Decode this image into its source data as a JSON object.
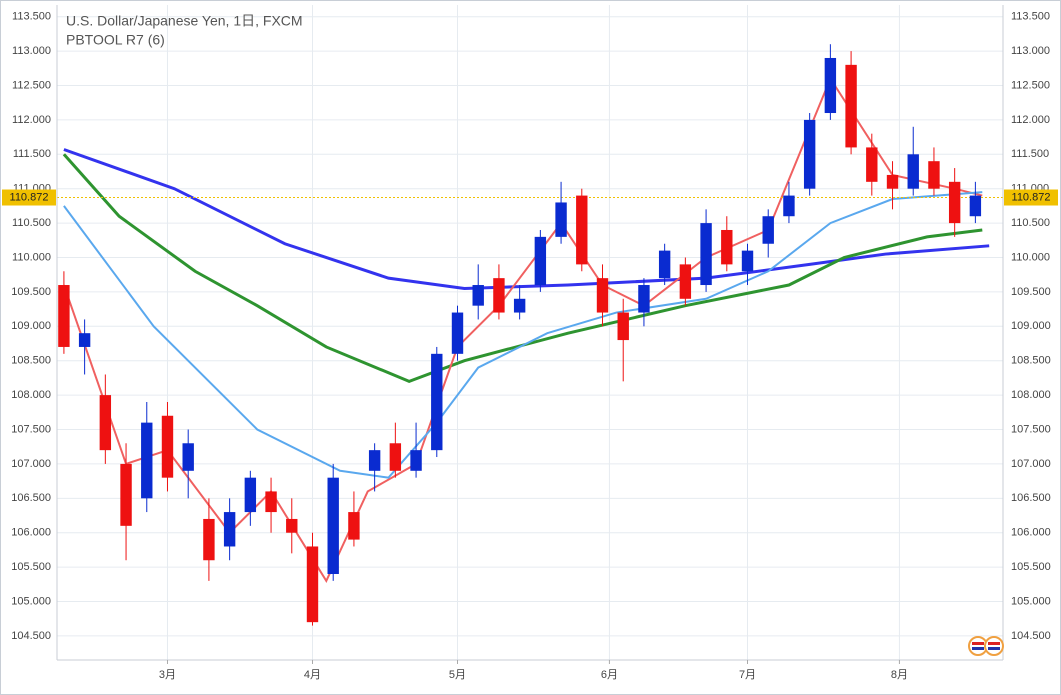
{
  "chart_data": {
    "type": "candlestick",
    "title": "U.S. Dollar/Japanese Yen, 1日, FXCM",
    "subtitle": "PBTOOL R7 (6)",
    "x": [
      0,
      3,
      6,
      9,
      12,
      15,
      18,
      21,
      24,
      27,
      30,
      33,
      36,
      39,
      42,
      45,
      48,
      51,
      54,
      57,
      60,
      63,
      66,
      69,
      72,
      75,
      78,
      81,
      84,
      87,
      90,
      93,
      96,
      99,
      102,
      105,
      108,
      111,
      114,
      117,
      120,
      123,
      126,
      129,
      132
    ],
    "candles": [
      [
        109.6,
        109.8,
        108.6,
        108.7
      ],
      [
        108.7,
        109.1,
        108.3,
        108.9
      ],
      [
        108.0,
        108.3,
        107.0,
        107.2
      ],
      [
        107.0,
        107.3,
        105.6,
        106.1
      ],
      [
        106.5,
        107.9,
        106.3,
        107.6
      ],
      [
        107.7,
        107.9,
        106.6,
        106.8
      ],
      [
        106.9,
        107.5,
        106.5,
        107.3
      ],
      [
        106.2,
        106.5,
        105.3,
        105.6
      ],
      [
        105.8,
        106.5,
        105.6,
        106.3
      ],
      [
        106.3,
        106.9,
        106.1,
        106.8
      ],
      [
        106.6,
        106.8,
        106.0,
        106.3
      ],
      [
        106.2,
        106.5,
        105.7,
        106.0
      ],
      [
        105.8,
        106.0,
        104.65,
        104.7
      ],
      [
        105.4,
        107.0,
        105.3,
        106.8
      ],
      [
        106.3,
        106.6,
        105.8,
        105.9
      ],
      [
        106.9,
        107.3,
        106.6,
        107.2
      ],
      [
        107.3,
        107.6,
        106.8,
        106.9
      ],
      [
        106.9,
        107.6,
        106.8,
        107.2
      ],
      [
        107.2,
        108.7,
        107.1,
        108.6
      ],
      [
        108.6,
        109.3,
        108.5,
        109.2
      ],
      [
        109.3,
        109.9,
        109.1,
        109.6
      ],
      [
        109.7,
        109.9,
        109.1,
        109.2
      ],
      [
        109.2,
        109.6,
        109.1,
        109.4
      ],
      [
        109.6,
        110.4,
        109.5,
        110.3
      ],
      [
        110.3,
        111.1,
        110.2,
        110.8
      ],
      [
        110.9,
        111.0,
        109.8,
        109.9
      ],
      [
        109.7,
        109.9,
        109.0,
        109.2
      ],
      [
        109.2,
        109.4,
        108.2,
        108.8
      ],
      [
        109.2,
        109.7,
        109.0,
        109.6
      ],
      [
        109.7,
        110.2,
        109.6,
        110.1
      ],
      [
        109.9,
        110.0,
        109.3,
        109.4
      ],
      [
        109.6,
        110.7,
        109.5,
        110.5
      ],
      [
        110.4,
        110.6,
        109.8,
        109.9
      ],
      [
        109.8,
        110.2,
        109.6,
        110.1
      ],
      [
        110.2,
        110.7,
        110.0,
        110.6
      ],
      [
        110.6,
        111.1,
        110.5,
        110.9
      ],
      [
        111.0,
        112.1,
        110.9,
        112.0
      ],
      [
        112.1,
        113.1,
        112.0,
        112.9
      ],
      [
        112.8,
        113.0,
        111.5,
        111.6
      ],
      [
        111.6,
        111.8,
        110.9,
        111.1
      ],
      [
        111.2,
        111.4,
        110.7,
        111.0
      ],
      [
        111.0,
        111.9,
        110.9,
        111.5
      ],
      [
        111.4,
        111.6,
        110.9,
        111.0
      ],
      [
        111.1,
        111.3,
        110.3,
        110.5
      ],
      [
        110.6,
        111.1,
        110.5,
        110.9
      ]
    ],
    "up_color": "#0a2bd0",
    "down_color": "#ee1111",
    "lines": [
      {
        "color": "#3333ee",
        "x": [
          0,
          16,
          32,
          47,
          58,
          73,
          93,
          108,
          119,
          134
        ],
        "values": [
          111.57,
          111.0,
          110.2,
          109.7,
          109.55,
          109.6,
          109.7,
          109.9,
          110.05,
          110.17
        ]
      },
      {
        "color": "#2e9430",
        "x": [
          0,
          8,
          19,
          28,
          38,
          50,
          58,
          73,
          90,
          105,
          113,
          125,
          133
        ],
        "values": [
          111.5,
          110.6,
          109.8,
          109.3,
          108.7,
          108.2,
          108.5,
          108.9,
          109.3,
          109.6,
          110.0,
          110.3,
          110.4
        ]
      },
      {
        "color": "#f06060",
        "x": [
          0,
          9,
          15,
          24,
          30,
          38,
          44,
          51,
          57,
          63,
          72,
          78,
          84,
          93,
          102,
          111,
          120,
          129,
          133
        ],
        "values": [
          109.6,
          107.0,
          107.2,
          106.0,
          106.6,
          105.3,
          106.6,
          107.0,
          108.7,
          109.3,
          110.5,
          109.6,
          109.3,
          110.0,
          110.4,
          112.6,
          111.2,
          111.0,
          110.9
        ]
      },
      {
        "color": "#5aa8ee",
        "x": [
          0,
          13,
          28,
          40,
          47,
          54,
          60,
          70,
          80,
          93,
          102,
          111,
          120,
          133
        ],
        "values": [
          110.75,
          109.0,
          107.5,
          106.9,
          106.8,
          107.6,
          108.4,
          108.9,
          109.2,
          109.4,
          109.8,
          110.5,
          110.85,
          110.95
        ]
      }
    ],
    "price_line": {
      "value": 110.872,
      "label": "110.872",
      "color": "#f0c000"
    },
    "xlim": [
      -1,
      136
    ],
    "xticks": [
      {
        "value": 15,
        "label": "3月"
      },
      {
        "value": 36,
        "label": "4月"
      },
      {
        "value": 57,
        "label": "5月"
      },
      {
        "value": 79,
        "label": "6月"
      },
      {
        "value": 99,
        "label": "7月"
      },
      {
        "value": 121,
        "label": "8月"
      }
    ],
    "ylim": [
      104.15,
      113.67
    ],
    "yticks": [
      {
        "value": 104.5,
        "label": "104.500"
      },
      {
        "value": 105,
        "label": "105.000"
      },
      {
        "value": 105.5,
        "label": "105.500"
      },
      {
        "value": 106,
        "label": "106.000"
      },
      {
        "value": 106.5,
        "label": "106.500"
      },
      {
        "value": 107,
        "label": "107.000"
      },
      {
        "value": 107.5,
        "label": "107.500"
      },
      {
        "value": 108,
        "label": "108.000"
      },
      {
        "value": 108.5,
        "label": "108.500"
      },
      {
        "value": 109,
        "label": "109.000"
      },
      {
        "value": 109.5,
        "label": "109.500"
      },
      {
        "value": 110,
        "label": "110.000"
      },
      {
        "value": 110.5,
        "label": "110.500"
      },
      {
        "value": 111,
        "label": "111.000"
      },
      {
        "value": 111.5,
        "label": "111.500"
      },
      {
        "value": 112,
        "label": "112.000"
      },
      {
        "value": 112.5,
        "label": "112.500"
      },
      {
        "value": 113,
        "label": "113.000"
      },
      {
        "value": 113.5,
        "label": "113.500"
      }
    ],
    "grid": true
  }
}
